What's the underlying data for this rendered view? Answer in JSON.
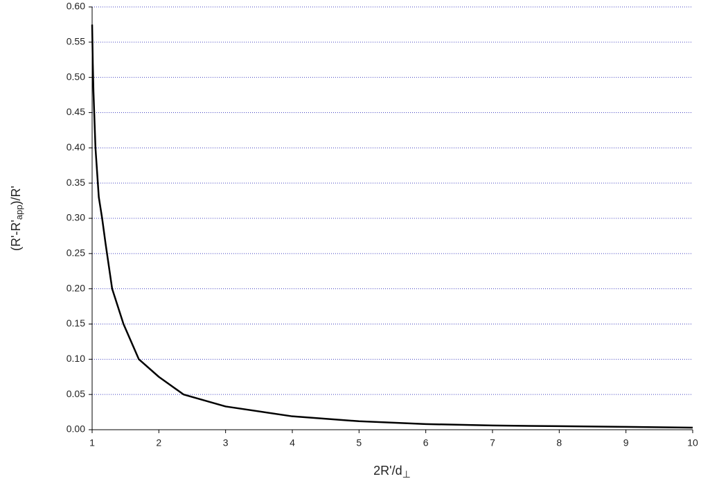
{
  "chart_data": {
    "type": "line",
    "xlabel": [
      "2R'/d",
      "⊥"
    ],
    "ylabel": [
      "(R'-R'",
      "app",
      ")/R'"
    ],
    "x": [
      1,
      1.01,
      1.02,
      1.05,
      1.1,
      1.15,
      1.2,
      1.3,
      1.47,
      1.7,
      2,
      2.37,
      3,
      4,
      5,
      6,
      7,
      8,
      9,
      10
    ],
    "series": [
      {
        "color": "#000000",
        "values": [
          0.575,
          0.52,
          0.48,
          0.4,
          0.33,
          0.3,
          0.265,
          0.2,
          0.15,
          0.1,
          0.075,
          0.05,
          0.033,
          0.019,
          0.012,
          0.008,
          0.006,
          0.005,
          0.004,
          0.003
        ]
      }
    ],
    "xlim": [
      1,
      10
    ],
    "xticks": [
      1,
      2,
      3,
      4,
      5,
      6,
      7,
      8,
      9,
      10
    ],
    "ylim": [
      0,
      0.6
    ],
    "yticks": [
      {
        "value": 0,
        "label": "0.00"
      },
      {
        "value": 0.05,
        "label": "0.05"
      },
      {
        "value": 0.1,
        "label": "0.10"
      },
      {
        "value": 0.15,
        "label": "0.15"
      },
      {
        "value": 0.2,
        "label": "0.20"
      },
      {
        "value": 0.25,
        "label": "0.25"
      },
      {
        "value": 0.3,
        "label": "0.30"
      },
      {
        "value": 0.35,
        "label": "0.35"
      },
      {
        "value": 0.4,
        "label": "0.40"
      },
      {
        "value": 0.45,
        "label": "0.45"
      },
      {
        "value": 0.5,
        "label": "0.50"
      },
      {
        "value": 0.55,
        "label": "0.55"
      },
      {
        "value": 0.6,
        "label": "0.60"
      }
    ],
    "grid": true,
    "grid_color": "#4040c0"
  }
}
